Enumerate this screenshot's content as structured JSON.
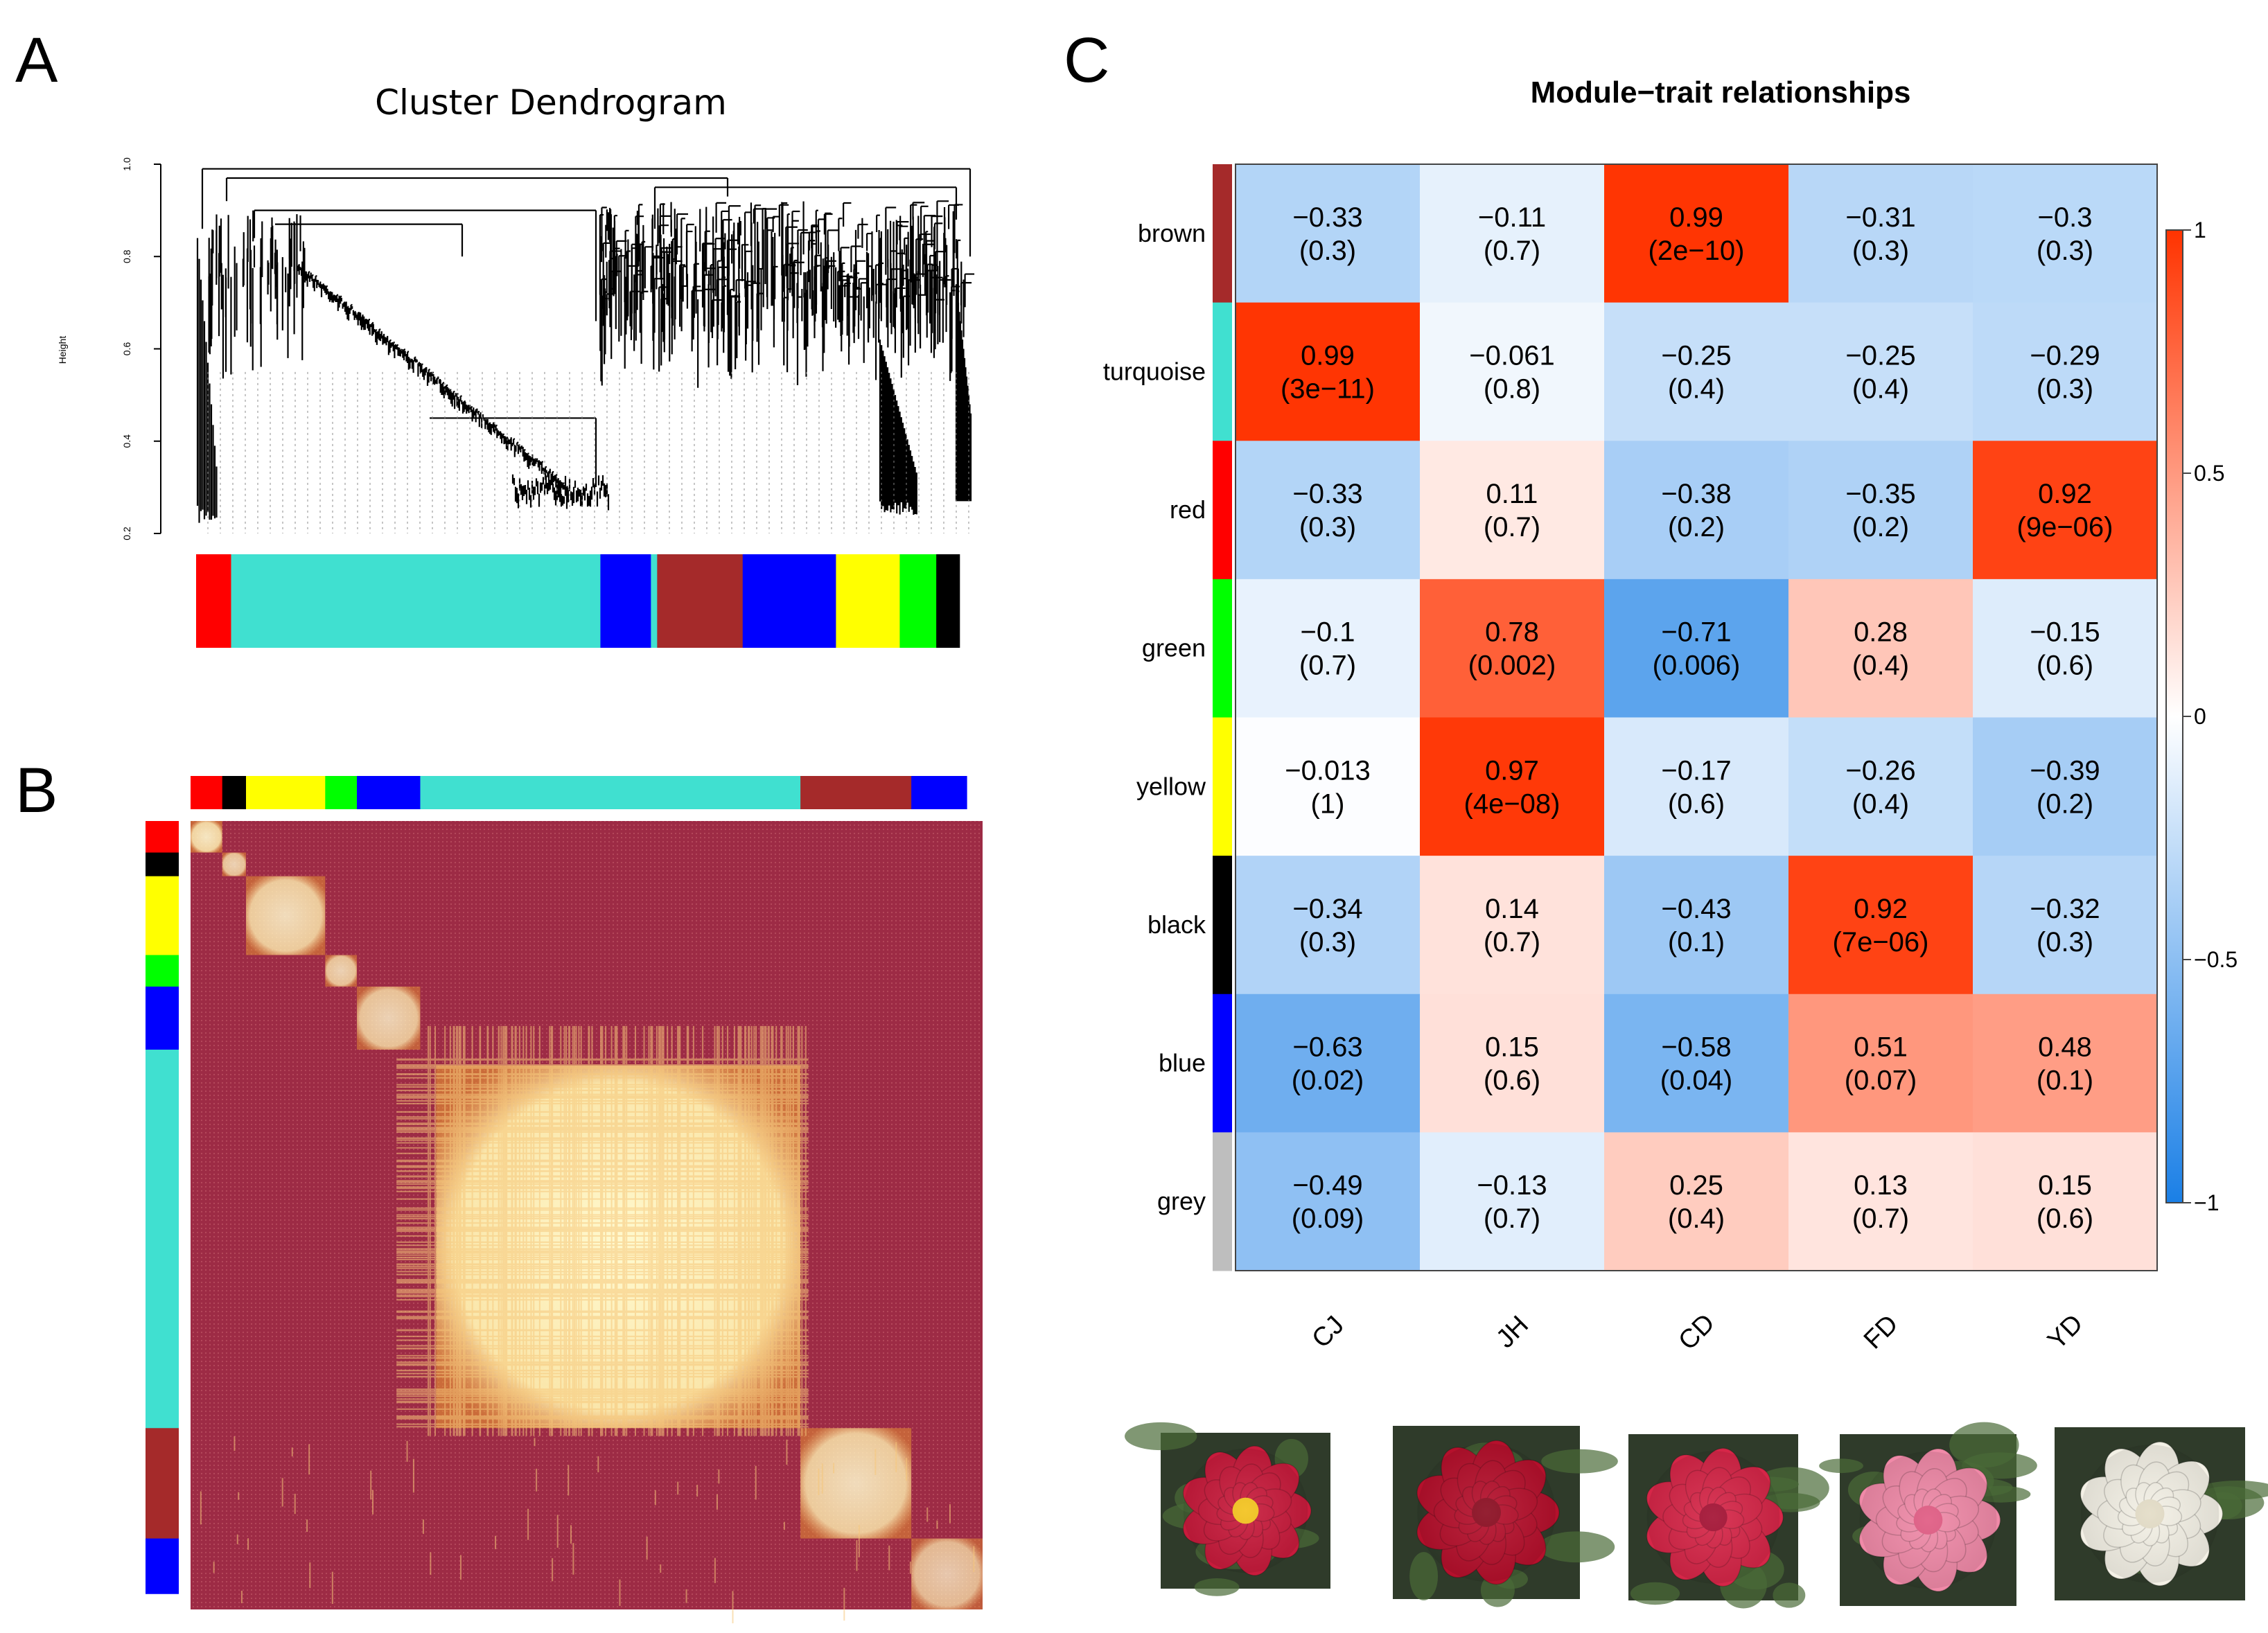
{
  "panels": {
    "a": "A",
    "b": "B",
    "c": "C"
  },
  "chart_data": [
    {
      "type": "dendrogram",
      "title": "Cluster Dendrogram",
      "ylabel": "Height",
      "ylim": [
        0.2,
        1.0
      ],
      "y_ticks": [
        "0.2",
        "0.4",
        "0.6",
        "0.8",
        "1.0"
      ],
      "module_colors_strip": [
        {
          "color": "red",
          "hex": "#ff0000",
          "share": 0.045
        },
        {
          "color": "turquoise",
          "hex": "#40e0d0",
          "share": 0.475
        },
        {
          "color": "blue",
          "hex": "#0000ff",
          "share": 0.065
        },
        {
          "color": "turquoise",
          "hex": "#40e0d0",
          "share": 0.008
        },
        {
          "color": "brown",
          "hex": "#a52a2a",
          "share": 0.11
        },
        {
          "color": "blue",
          "hex": "#0000ff",
          "share": 0.12
        },
        {
          "color": "yellow",
          "hex": "#ffff00",
          "share": 0.082
        },
        {
          "color": "green",
          "hex": "#00ff00",
          "share": 0.047
        },
        {
          "color": "black",
          "hex": "#000000",
          "share": 0.03
        }
      ]
    },
    {
      "type": "heatmap",
      "title": "",
      "description_colors": {
        "low": "#9d2b45",
        "high": "#fffad0"
      },
      "module_order_top": [
        {
          "color": "red",
          "hex": "#ff0000",
          "share": 0.04
        },
        {
          "color": "black",
          "hex": "#000000",
          "share": 0.03
        },
        {
          "color": "yellow",
          "hex": "#ffff00",
          "share": 0.1
        },
        {
          "color": "green",
          "hex": "#00ff00",
          "share": 0.04
        },
        {
          "color": "blue",
          "hex": "#0000ff",
          "share": 0.08
        },
        {
          "color": "turquoise",
          "hex": "#40e0d0",
          "share": 0.48
        },
        {
          "color": "brown",
          "hex": "#a52a2a",
          "share": 0.14
        },
        {
          "color": "blue",
          "hex": "#0000ff",
          "share": 0.07
        }
      ],
      "blocks": [
        {
          "module": "red",
          "start": 0.0,
          "end": 0.04,
          "strength": 0.9
        },
        {
          "module": "black",
          "start": 0.04,
          "end": 0.07,
          "strength": 0.8
        },
        {
          "module": "yellow",
          "start": 0.07,
          "end": 0.17,
          "strength": 0.85
        },
        {
          "module": "green",
          "start": 0.17,
          "end": 0.21,
          "strength": 0.8
        },
        {
          "module": "blue",
          "start": 0.21,
          "end": 0.29,
          "strength": 0.8
        },
        {
          "module": "turquoise",
          "start": 0.31,
          "end": 0.77,
          "strength": 1.0
        },
        {
          "module": "brown",
          "start": 0.77,
          "end": 0.91,
          "strength": 0.85
        },
        {
          "module": "blue",
          "start": 0.91,
          "end": 1.0,
          "strength": 0.75
        }
      ]
    },
    {
      "type": "heatmap",
      "title": "Module−trait relationships",
      "rows": [
        {
          "module": "brown",
          "hex": "#a52a2a"
        },
        {
          "module": "turquoise",
          "hex": "#40e0d0"
        },
        {
          "module": "red",
          "hex": "#ff0000"
        },
        {
          "module": "green",
          "hex": "#00ff00"
        },
        {
          "module": "yellow",
          "hex": "#ffff00"
        },
        {
          "module": "black",
          "hex": "#000000"
        },
        {
          "module": "blue",
          "hex": "#0000ff"
        },
        {
          "module": "grey",
          "hex": "#bebebe"
        }
      ],
      "columns": [
        "CJ",
        "JH",
        "CD",
        "FD",
        "YD"
      ],
      "values": [
        [
          -0.33,
          -0.11,
          0.99,
          -0.31,
          -0.3
        ],
        [
          0.99,
          -0.061,
          -0.25,
          -0.25,
          -0.29
        ],
        [
          -0.33,
          0.11,
          -0.38,
          -0.35,
          0.92
        ],
        [
          -0.1,
          0.78,
          -0.71,
          0.28,
          -0.15
        ],
        [
          -0.013,
          0.97,
          -0.17,
          -0.26,
          -0.39
        ],
        [
          -0.34,
          0.14,
          -0.43,
          0.92,
          -0.32
        ],
        [
          -0.63,
          0.15,
          -0.58,
          0.51,
          0.48
        ],
        [
          -0.49,
          -0.13,
          0.25,
          0.13,
          0.15
        ]
      ],
      "labels": [
        [
          "−0.33",
          "−0.11",
          "0.99",
          "−0.31",
          "−0.3"
        ],
        [
          "0.99",
          "−0.061",
          "−0.25",
          "−0.25",
          "−0.29"
        ],
        [
          "−0.33",
          "0.11",
          "−0.38",
          "−0.35",
          "0.92"
        ],
        [
          "−0.1",
          "0.78",
          "−0.71",
          "0.28",
          "−0.15"
        ],
        [
          "−0.013",
          "0.97",
          "−0.17",
          "−0.26",
          "−0.39"
        ],
        [
          "−0.34",
          "0.14",
          "−0.43",
          "0.92",
          "−0.32"
        ],
        [
          "−0.63",
          "0.15",
          "−0.58",
          "0.51",
          "0.48"
        ],
        [
          "−0.49",
          "−0.13",
          "0.25",
          "0.13",
          "0.15"
        ]
      ],
      "pvalues": [
        [
          "(0.3)",
          "(0.7)",
          "(2e−10)",
          "(0.3)",
          "(0.3)"
        ],
        [
          "(3e−11)",
          "(0.8)",
          "(0.4)",
          "(0.4)",
          "(0.3)"
        ],
        [
          "(0.3)",
          "(0.7)",
          "(0.2)",
          "(0.2)",
          "(9e−06)"
        ],
        [
          "(0.7)",
          "(0.002)",
          "(0.006)",
          "(0.4)",
          "(0.6)"
        ],
        [
          "(1)",
          "(4e−08)",
          "(0.6)",
          "(0.4)",
          "(0.2)"
        ],
        [
          "(0.3)",
          "(0.7)",
          "(0.1)",
          "(7e−06)",
          "(0.3)"
        ],
        [
          "(0.02)",
          "(0.6)",
          "(0.04)",
          "(0.07)",
          "(0.1)"
        ],
        [
          "(0.09)",
          "(0.7)",
          "(0.4)",
          "(0.7)",
          "(0.6)"
        ]
      ],
      "colorbar": {
        "range": [
          -1,
          1
        ],
        "ticks": [
          1,
          0.5,
          0,
          -0.5,
          -1
        ],
        "tick_labels": [
          "1",
          "0.5",
          "0",
          "−0.5",
          "−1"
        ],
        "colors": {
          "low": "#1a7fe6",
          "mid": "#ffffff",
          "high": "#ff3300"
        }
      }
    }
  ],
  "flower_photos": [
    {
      "variety": "CJ",
      "petal": "#c81b3c",
      "center": "#f3c21c"
    },
    {
      "variety": "JH",
      "petal": "#b5102c",
      "center": "#8a0b1f"
    },
    {
      "variety": "CD",
      "petal": "#d62648",
      "center": "#a31032"
    },
    {
      "variety": "FD",
      "petal": "#f08aa8",
      "center": "#e05a82"
    },
    {
      "variety": "YD",
      "petal": "#f4f1e6",
      "center": "#e3dcc6"
    }
  ]
}
